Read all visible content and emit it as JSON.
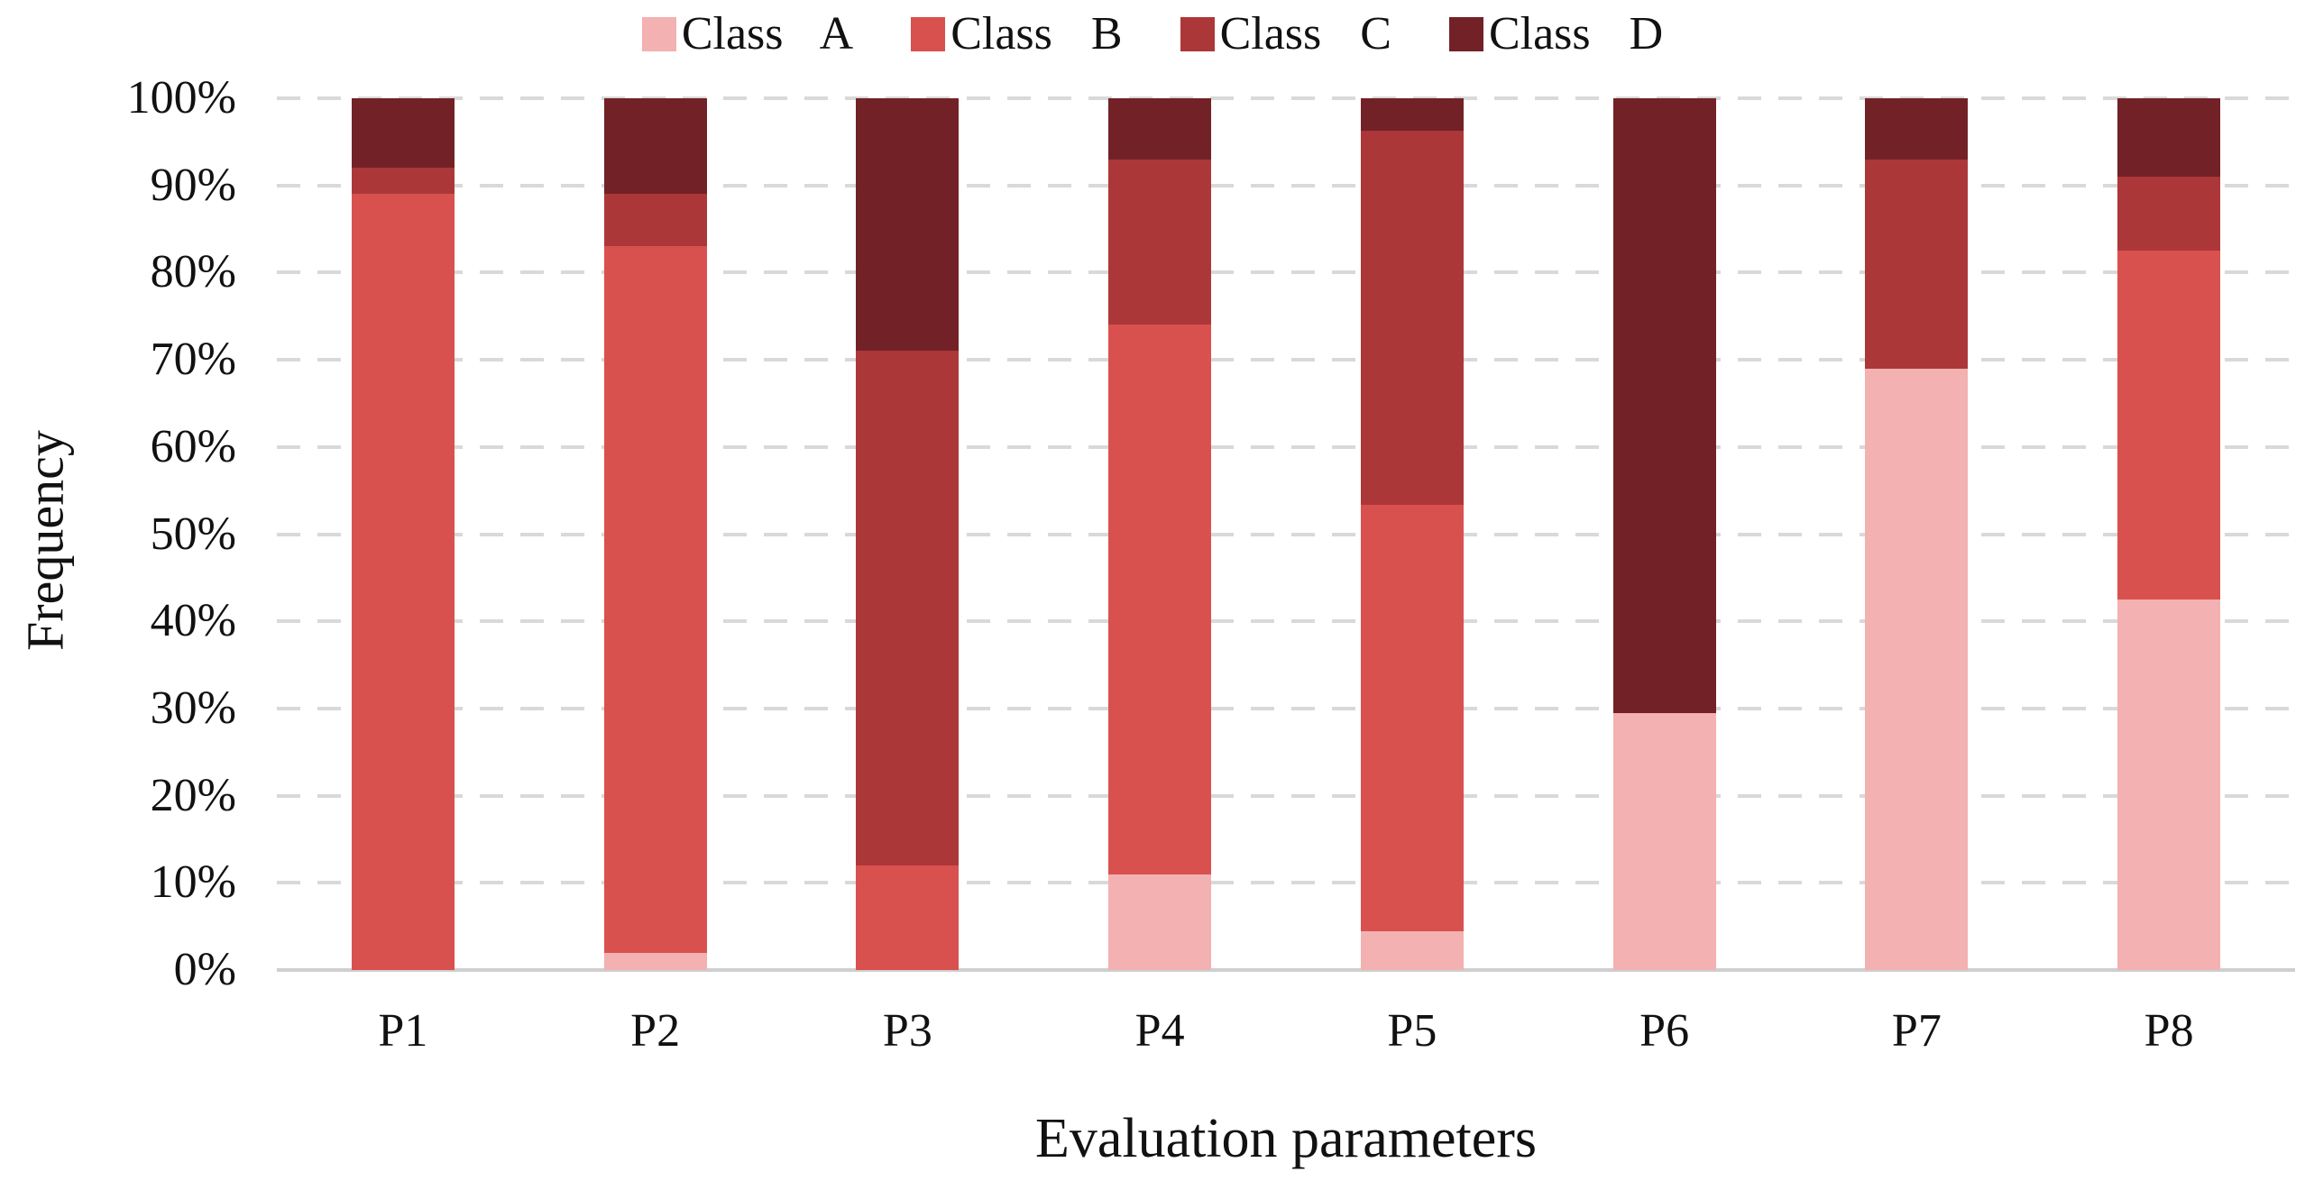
{
  "chart_data": {
    "type": "bar",
    "variant": "stacked-100-percent",
    "title": "",
    "xlabel": "Evaluation parameters",
    "ylabel": "Frequency",
    "categories": [
      "P1",
      "P2",
      "P3",
      "P4",
      "P5",
      "P6",
      "P7",
      "P8"
    ],
    "series": [
      {
        "name": "Class A",
        "color": "#f3b1b1",
        "values": [
          0,
          2,
          0,
          11,
          4.5,
          29.5,
          69,
          42.5
        ]
      },
      {
        "name": "Class B",
        "color": "#d9514e",
        "values": [
          89,
          81,
          12,
          63,
          48.9,
          0,
          0,
          40
        ]
      },
      {
        "name": "Class C",
        "color": "#ac3739",
        "values": [
          3,
          6,
          59,
          19,
          42.9,
          0,
          24,
          8.5
        ]
      },
      {
        "name": "Class D",
        "color": "#722227",
        "values": [
          8,
          11,
          29,
          7,
          3.7,
          70.5,
          7,
          9
        ]
      }
    ],
    "y_ticks": [
      "100%",
      "90%",
      "80%",
      "70%",
      "60%",
      "50%",
      "40%",
      "30%",
      "20%",
      "10%",
      "0%"
    ],
    "ylim": [
      0,
      100
    ],
    "grid": "horizontal-dashed",
    "grid_color": "#d9d9d9",
    "axis_line_color": "#cfcfcf",
    "legend_position": "top-center"
  }
}
